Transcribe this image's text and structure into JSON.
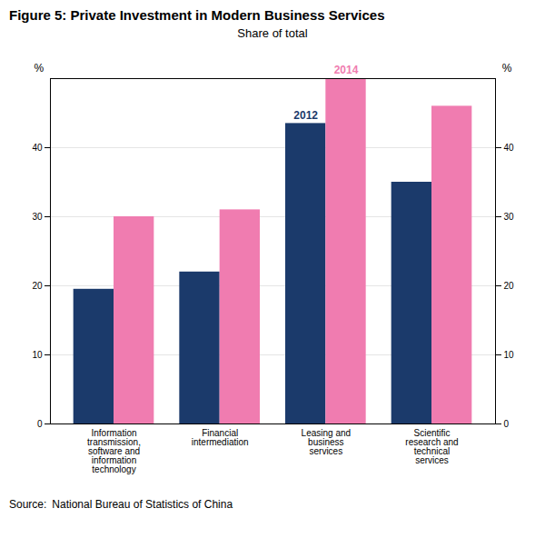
{
  "chart_data": {
    "type": "bar",
    "title": "Figure 5: Private Investment in Modern Business Services",
    "subtitle": "Share of total",
    "categories": [
      "Information\ntransmission,\nsoftware and\ninformation\ntechnology",
      "Financial\nintermediation",
      "Leasing and\nbusiness\nservices",
      "Scientific\nresearch and\ntechnical\nservices"
    ],
    "series": [
      {
        "name": "2012",
        "color": "#1b3a6b",
        "values": [
          19.5,
          22,
          43.5,
          35
        ]
      },
      {
        "name": "2014",
        "color": "#f07cb0",
        "values": [
          30,
          31,
          50,
          46
        ]
      }
    ],
    "ylabel": "%",
    "y2label": "%",
    "ylim": [
      0,
      50
    ],
    "yticks": [
      0,
      10,
      20,
      30,
      40
    ],
    "y2lim": [
      0,
      50
    ],
    "y2ticks": [
      0,
      10,
      20,
      30,
      40
    ],
    "grid": true,
    "source_label": "Source:",
    "source": "National Bureau of Statistics of China"
  }
}
